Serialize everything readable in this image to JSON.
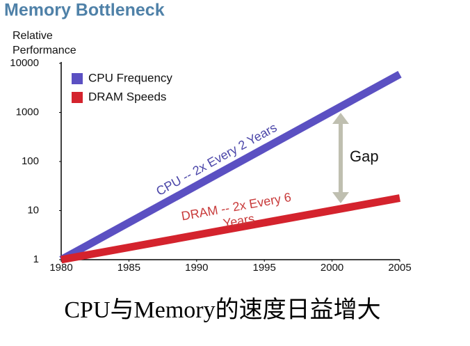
{
  "chart_data": {
    "type": "line",
    "title": "Memory Bottleneck",
    "ylabel_lines": [
      "Relative",
      "Performance"
    ],
    "x": [
      1980,
      2005
    ],
    "series": [
      {
        "name": "CPU Frequency",
        "color": "#5b50c2",
        "values": [
          1,
          6000
        ]
      },
      {
        "name": "DRAM Speeds",
        "color": "#d4232d",
        "values": [
          1,
          18
        ]
      }
    ],
    "xlim": [
      1980,
      2005
    ],
    "xticks": [
      1980,
      1985,
      1990,
      1995,
      2000,
      2005
    ],
    "ylim": [
      1,
      10000
    ],
    "yticks": [
      1,
      10,
      100,
      1000,
      10000
    ],
    "yscale": "log",
    "grid": false,
    "legend": "upper left",
    "annotations": {
      "cpu": "CPU -- 2x Every 2 Years",
      "dram_lines": [
        "DRAM -- 2x Every 6",
        "Years"
      ],
      "gap": "Gap"
    },
    "caption": "CPU与Memory的速度日益增大"
  }
}
